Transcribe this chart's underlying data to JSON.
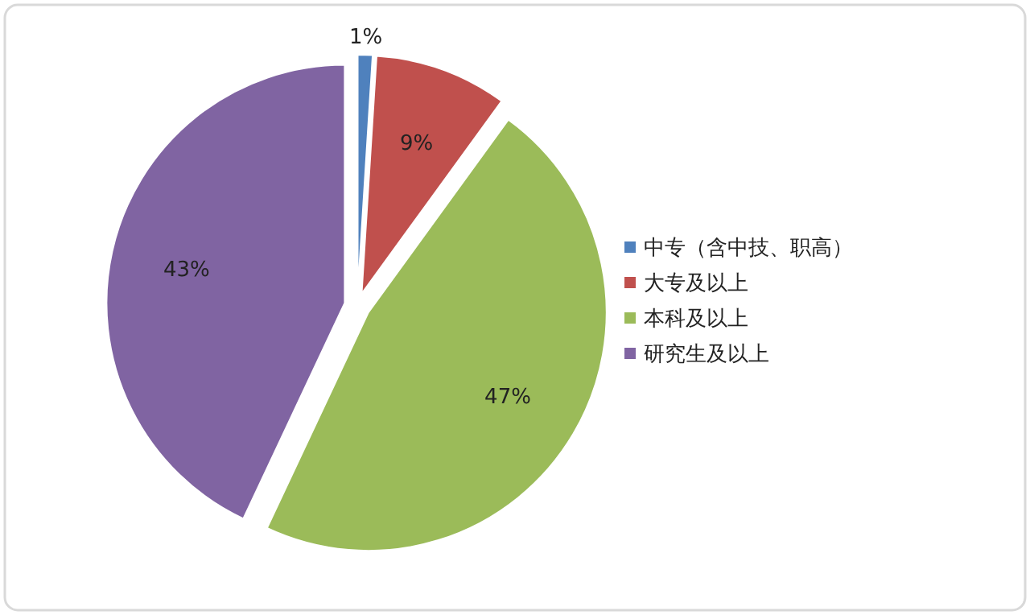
{
  "chart_data": {
    "type": "pie",
    "categories": [
      "中专（含中技、职高）",
      "大专及以上",
      "本科及以上",
      "研究生及以上"
    ],
    "values": [
      1,
      9,
      47,
      43
    ],
    "colors": [
      "#4f81bd",
      "#c0504d",
      "#9bbb59",
      "#8064a2"
    ],
    "value_labels": [
      "1%",
      "9%",
      "47%",
      "43%"
    ],
    "legend": "right"
  }
}
